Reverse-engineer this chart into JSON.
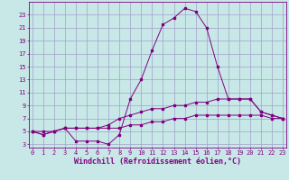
{
  "xlabel": "Windchill (Refroidissement éolien,°C)",
  "x": [
    0,
    1,
    2,
    3,
    4,
    5,
    6,
    7,
    8,
    9,
    10,
    11,
    12,
    13,
    14,
    15,
    16,
    17,
    18,
    19,
    20,
    21,
    22,
    23
  ],
  "line1": [
    5.0,
    4.5,
    5.0,
    5.5,
    3.5,
    3.5,
    3.5,
    3.0,
    4.5,
    10.0,
    13.0,
    17.5,
    21.5,
    22.5,
    24.0,
    23.5,
    21.0,
    15.0,
    10.0,
    10.0,
    10.0,
    8.0,
    7.5,
    7.0
  ],
  "line2": [
    5.0,
    4.5,
    5.0,
    5.5,
    5.5,
    5.5,
    5.5,
    6.0,
    7.0,
    7.5,
    8.0,
    8.5,
    8.5,
    9.0,
    9.0,
    9.5,
    9.5,
    10.0,
    10.0,
    10.0,
    10.0,
    8.0,
    7.5,
    7.0
  ],
  "line3": [
    5.0,
    5.0,
    5.0,
    5.5,
    5.5,
    5.5,
    5.5,
    5.5,
    5.5,
    6.0,
    6.0,
    6.5,
    6.5,
    7.0,
    7.0,
    7.5,
    7.5,
    7.5,
    7.5,
    7.5,
    7.5,
    7.5,
    7.0,
    7.0
  ],
  "line_color": "#800080",
  "bg_color": "#c8e8e8",
  "grid_color": "#a0a0c8",
  "ylim": [
    2.5,
    25
  ],
  "xlim": [
    -0.3,
    23.3
  ],
  "yticks": [
    3,
    5,
    7,
    9,
    11,
    13,
    15,
    17,
    19,
    21,
    23
  ],
  "xticks": [
    0,
    1,
    2,
    3,
    4,
    5,
    6,
    7,
    8,
    9,
    10,
    11,
    12,
    13,
    14,
    15,
    16,
    17,
    18,
    19,
    20,
    21,
    22,
    23
  ],
  "tick_fontsize": 5.0,
  "xlabel_fontsize": 6.0
}
